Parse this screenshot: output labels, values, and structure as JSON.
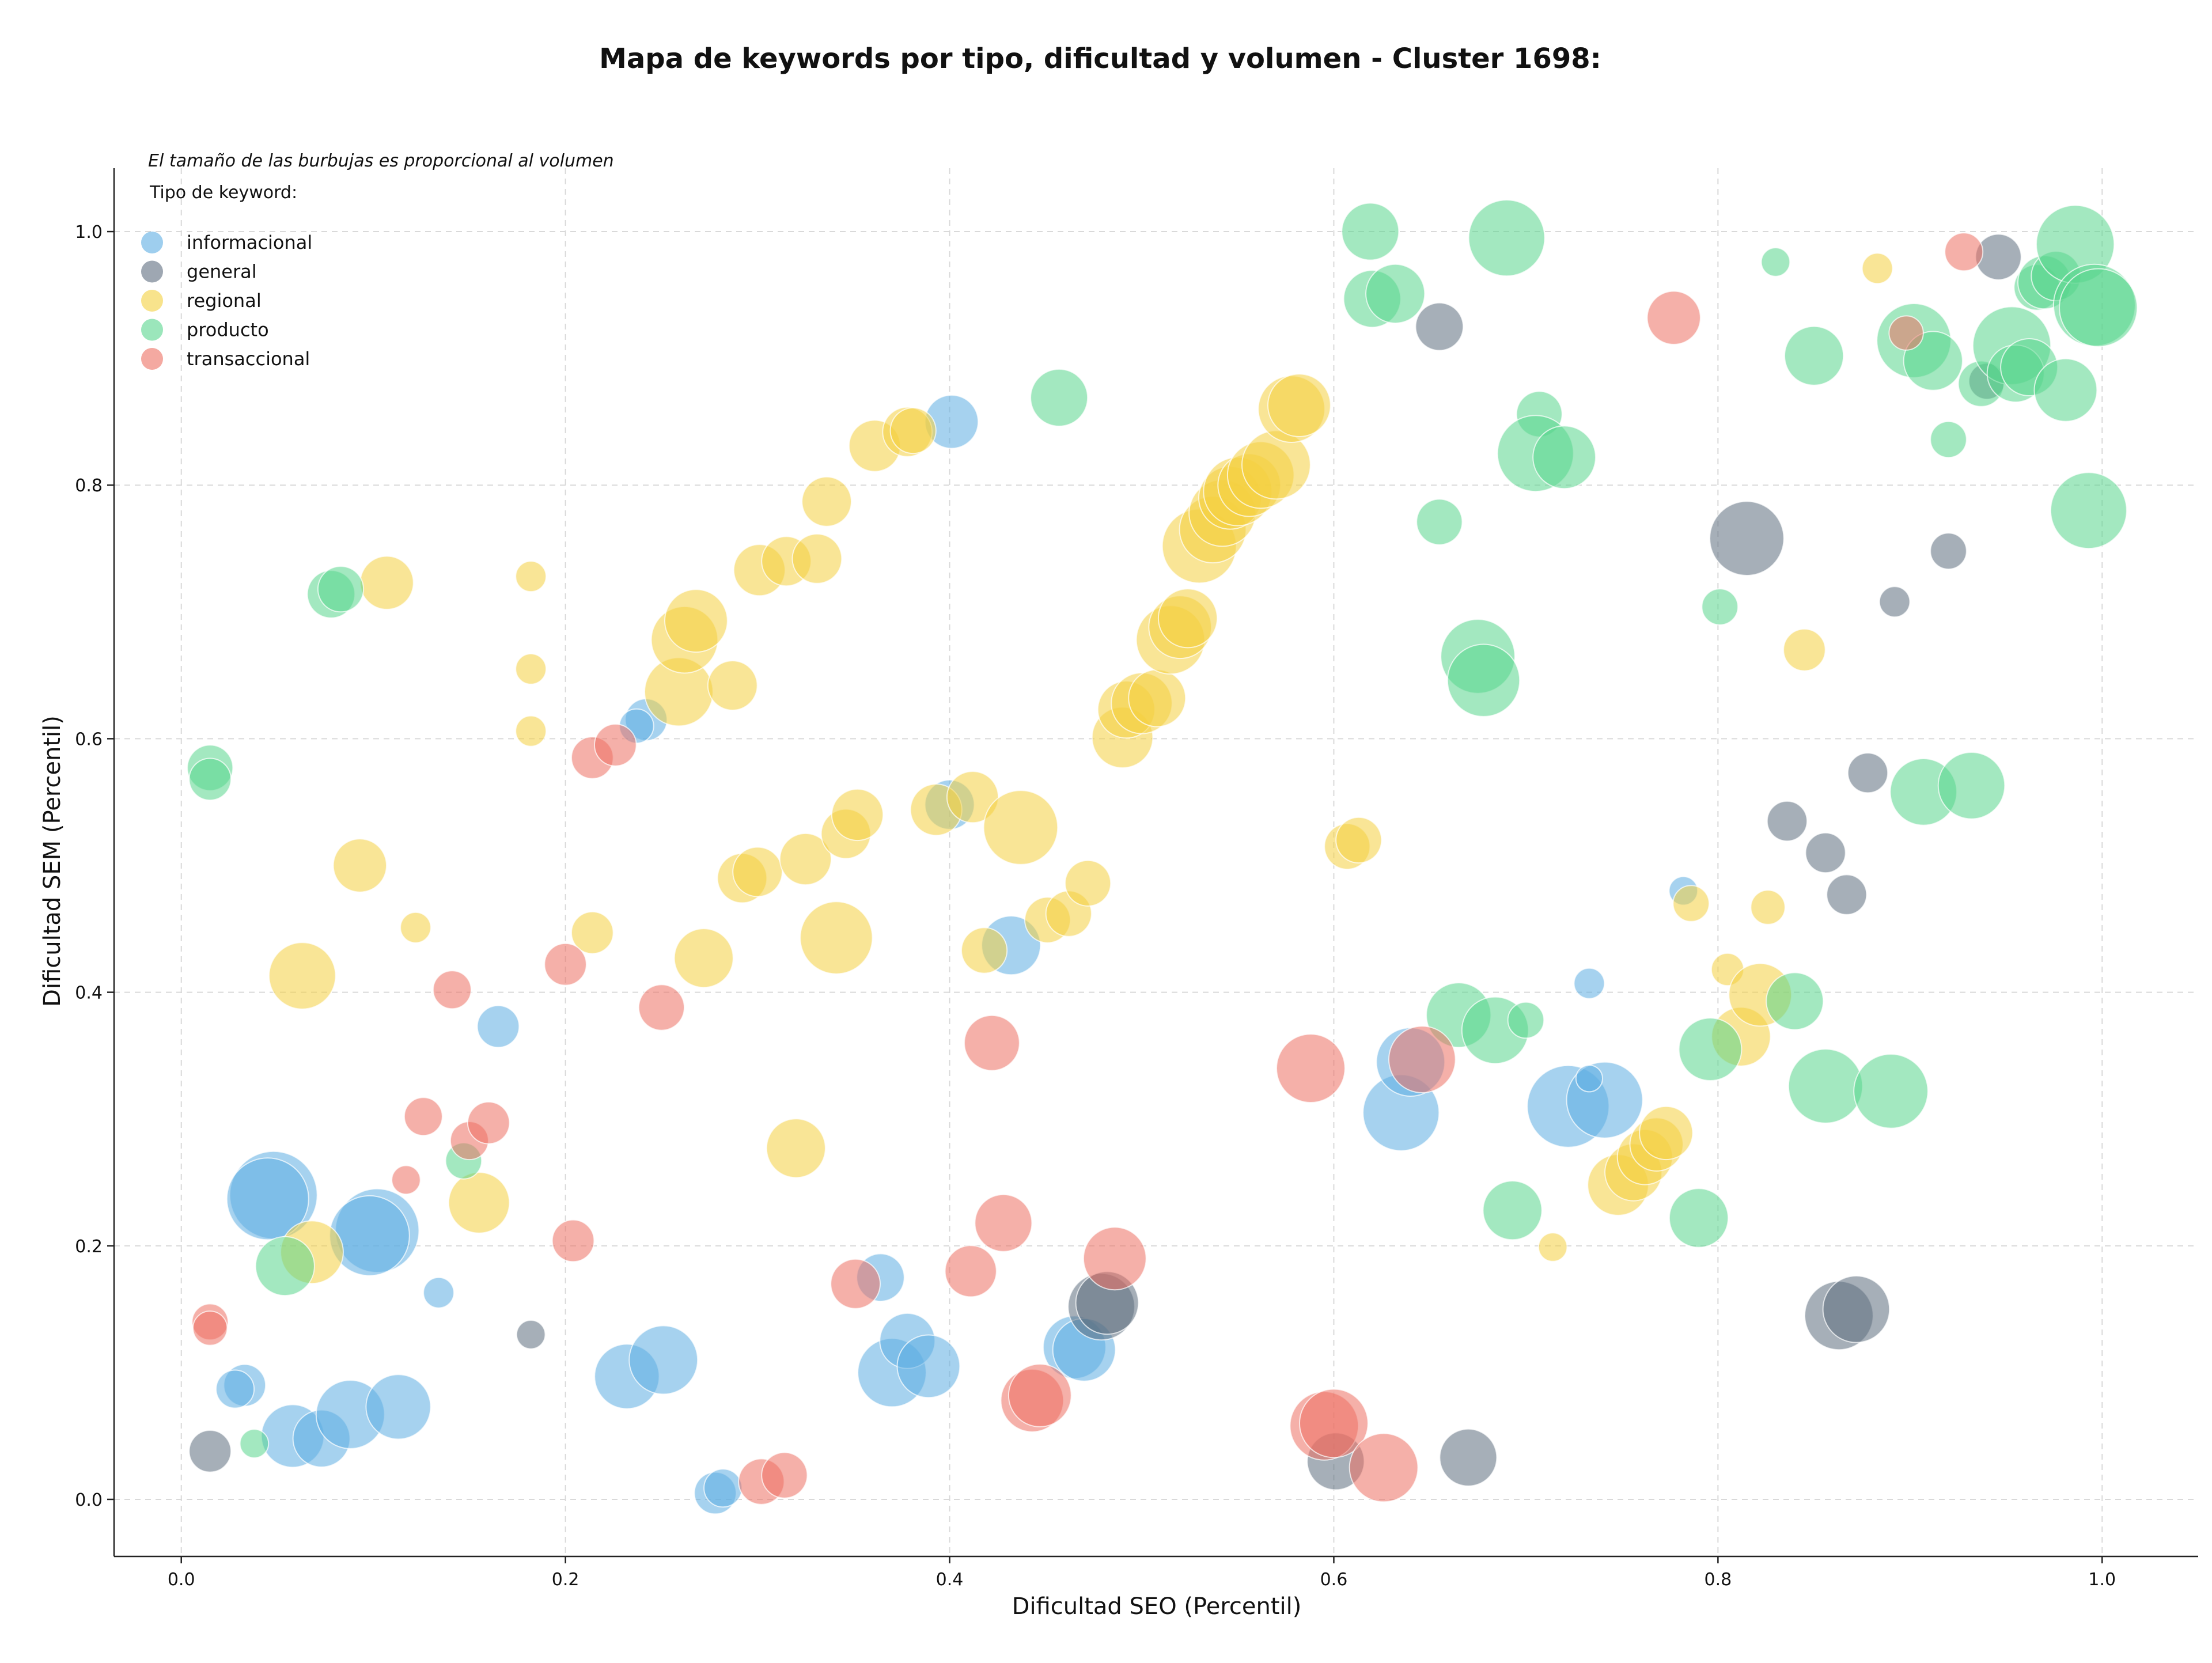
{
  "chart_data": {
    "type": "scatter",
    "title": "Mapa de keywords por tipo, dificultad y volumen - Cluster 1698:",
    "xlabel": "Dificultad SEO (Percentil)",
    "ylabel": "Dificultad SEM (Percentil)",
    "xlim": [
      -0.035,
      1.05
    ],
    "ylim": [
      -0.045,
      1.05
    ],
    "xticks": [
      0.0,
      0.2,
      0.4,
      0.6,
      0.8,
      1.0
    ],
    "yticks": [
      0.0,
      0.2,
      0.4,
      0.6,
      0.8,
      1.0
    ],
    "tick_labels_x": [
      "0.0",
      "0.2",
      "0.4",
      "0.6",
      "0.8",
      "1.0"
    ],
    "tick_labels_y": [
      "0.0",
      "0.2",
      "0.4",
      "0.6",
      "0.8",
      "1.0"
    ],
    "grid": true,
    "legend_position": "top-left",
    "annotation": "El tamaño de las burbujas es proporcional al volumen",
    "legend_title": "Tipo de keyword:",
    "size_encoding": "volume (bubble radius in relative units 1-5)",
    "series": [
      {
        "name": "informacional",
        "color": "#5DADE2",
        "points": [
          [
            0.048,
            0.24,
            4.6
          ],
          [
            0.045,
            0.237,
            4.3
          ],
          [
            0.102,
            0.212,
            4.4
          ],
          [
            0.098,
            0.208,
            4.2
          ],
          [
            0.033,
            0.09,
            2.2
          ],
          [
            0.028,
            0.087,
            2.0
          ],
          [
            0.058,
            0.05,
            3.3
          ],
          [
            0.073,
            0.048,
            3.0
          ],
          [
            0.088,
            0.067,
            3.6
          ],
          [
            0.113,
            0.073,
            3.4
          ],
          [
            0.134,
            0.163,
            1.6
          ],
          [
            0.165,
            0.373,
            2.2
          ],
          [
            0.232,
            0.097,
            3.4
          ],
          [
            0.251,
            0.11,
            3.6
          ],
          [
            0.242,
            0.615,
            2.2
          ],
          [
            0.237,
            0.61,
            1.8
          ],
          [
            0.278,
            0.005,
            2.2
          ],
          [
            0.282,
            0.009,
            2.0
          ],
          [
            0.364,
            0.175,
            2.5
          ],
          [
            0.37,
            0.1,
            3.6
          ],
          [
            0.378,
            0.125,
            2.9
          ],
          [
            0.389,
            0.105,
            3.3
          ],
          [
            0.401,
            0.85,
            2.8
          ],
          [
            0.4,
            0.548,
            2.6
          ],
          [
            0.432,
            0.437,
            3.1
          ],
          [
            0.465,
            0.12,
            3.3
          ],
          [
            0.47,
            0.118,
            3.3
          ],
          [
            0.635,
            0.305,
            4.0
          ],
          [
            0.64,
            0.345,
            3.6
          ],
          [
            0.722,
            0.31,
            4.3
          ],
          [
            0.741,
            0.315,
            4.0
          ],
          [
            0.733,
            0.407,
            1.6
          ],
          [
            0.733,
            0.332,
            1.4
          ],
          [
            0.782,
            0.48,
            1.5
          ]
        ]
      },
      {
        "name": "general",
        "color": "#5D6D7E",
        "points": [
          [
            0.015,
            0.038,
            2.2
          ],
          [
            0.182,
            0.13,
            1.5
          ],
          [
            0.479,
            0.152,
            3.5
          ],
          [
            0.482,
            0.155,
            3.3
          ],
          [
            0.601,
            0.03,
            3.0
          ],
          [
            0.655,
            0.925,
            2.5
          ],
          [
            0.67,
            0.033,
            3.0
          ],
          [
            0.815,
            0.758,
            3.9
          ],
          [
            0.836,
            0.535,
            2.1
          ],
          [
            0.856,
            0.51,
            2.1
          ],
          [
            0.867,
            0.477,
            2.1
          ],
          [
            0.863,
            0.145,
            3.6
          ],
          [
            0.872,
            0.15,
            3.5
          ],
          [
            0.878,
            0.573,
            2.1
          ],
          [
            0.892,
            0.708,
            1.6
          ],
          [
            0.92,
            0.748,
            1.9
          ],
          [
            0.946,
            0.98,
            2.4
          ],
          [
            0.94,
            0.882,
            1.9
          ]
        ]
      },
      {
        "name": "regional",
        "color": "#F4D03F",
        "points": [
          [
            0.063,
            0.413,
            3.5
          ],
          [
            0.068,
            0.195,
            3.3
          ],
          [
            0.093,
            0.5,
            2.8
          ],
          [
            0.107,
            0.723,
            2.8
          ],
          [
            0.122,
            0.451,
            1.6
          ],
          [
            0.155,
            0.234,
            3.2
          ],
          [
            0.182,
            0.728,
            1.6
          ],
          [
            0.182,
            0.655,
            1.6
          ],
          [
            0.182,
            0.606,
            1.6
          ],
          [
            0.214,
            0.447,
            2.2
          ],
          [
            0.259,
            0.637,
            3.6
          ],
          [
            0.262,
            0.678,
            3.5
          ],
          [
            0.268,
            0.693,
            3.3
          ],
          [
            0.272,
            0.427,
            3.1
          ],
          [
            0.287,
            0.642,
            2.6
          ],
          [
            0.292,
            0.49,
            2.6
          ],
          [
            0.3,
            0.495,
            2.6
          ],
          [
            0.301,
            0.733,
            2.7
          ],
          [
            0.315,
            0.74,
            2.6
          ],
          [
            0.32,
            0.277,
            3.1
          ],
          [
            0.325,
            0.505,
            2.7
          ],
          [
            0.331,
            0.742,
            2.6
          ],
          [
            0.336,
            0.787,
            2.6
          ],
          [
            0.341,
            0.443,
            3.8
          ],
          [
            0.346,
            0.525,
            2.6
          ],
          [
            0.352,
            0.54,
            2.7
          ],
          [
            0.361,
            0.831,
            2.7
          ],
          [
            0.378,
            0.842,
            2.6
          ],
          [
            0.381,
            0.843,
            2.4
          ],
          [
            0.393,
            0.544,
            2.7
          ],
          [
            0.412,
            0.554,
            2.7
          ],
          [
            0.418,
            0.433,
            2.4
          ],
          [
            0.437,
            0.53,
            3.9
          ],
          [
            0.451,
            0.457,
            2.4
          ],
          [
            0.462,
            0.462,
            2.4
          ],
          [
            0.472,
            0.486,
            2.4
          ],
          [
            0.49,
            0.601,
            3.2
          ],
          [
            0.492,
            0.623,
            3.0
          ],
          [
            0.5,
            0.628,
            3.2
          ],
          [
            0.508,
            0.632,
            3.0
          ],
          [
            0.515,
            0.678,
            3.6
          ],
          [
            0.52,
            0.688,
            3.3
          ],
          [
            0.524,
            0.695,
            3.1
          ],
          [
            0.53,
            0.752,
            3.9
          ],
          [
            0.537,
            0.765,
            3.5
          ],
          [
            0.542,
            0.778,
            3.5
          ],
          [
            0.546,
            0.79,
            3.3
          ],
          [
            0.55,
            0.795,
            3.6
          ],
          [
            0.556,
            0.8,
            3.3
          ],
          [
            0.562,
            0.808,
            3.5
          ],
          [
            0.57,
            0.816,
            3.6
          ],
          [
            0.578,
            0.86,
            3.5
          ],
          [
            0.582,
            0.863,
            3.3
          ],
          [
            0.607,
            0.515,
            2.4
          ],
          [
            0.613,
            0.52,
            2.4
          ],
          [
            0.714,
            0.199,
            1.5
          ],
          [
            0.748,
            0.248,
            3.2
          ],
          [
            0.756,
            0.258,
            3.0
          ],
          [
            0.762,
            0.27,
            2.9
          ],
          [
            0.768,
            0.28,
            2.8
          ],
          [
            0.773,
            0.289,
            2.8
          ],
          [
            0.786,
            0.47,
            1.9
          ],
          [
            0.805,
            0.418,
            1.7
          ],
          [
            0.812,
            0.365,
            3.1
          ],
          [
            0.822,
            0.398,
            3.3
          ],
          [
            0.826,
            0.467,
            1.8
          ],
          [
            0.845,
            0.67,
            2.2
          ],
          [
            0.883,
            0.971,
            1.6
          ]
        ]
      },
      {
        "name": "producto",
        "color": "#58D68D",
        "points": [
          [
            0.015,
            0.577,
            2.4
          ],
          [
            0.015,
            0.568,
            2.2
          ],
          [
            0.038,
            0.044,
            1.5
          ],
          [
            0.054,
            0.184,
            3.1
          ],
          [
            0.078,
            0.714,
            2.5
          ],
          [
            0.083,
            0.718,
            2.4
          ],
          [
            0.147,
            0.267,
            1.9
          ],
          [
            0.457,
            0.869,
            3.0
          ],
          [
            0.619,
            1.0,
            3.0
          ],
          [
            0.62,
            0.947,
            3.0
          ],
          [
            0.632,
            0.951,
            3.1
          ],
          [
            0.655,
            0.771,
            2.4
          ],
          [
            0.675,
            0.665,
            3.9
          ],
          [
            0.678,
            0.646,
            3.8
          ],
          [
            0.665,
            0.382,
            3.4
          ],
          [
            0.684,
            0.37,
            3.5
          ],
          [
            0.69,
            0.995,
            4.0
          ],
          [
            0.693,
            0.228,
            3.1
          ],
          [
            0.7,
            0.378,
            1.9
          ],
          [
            0.707,
            0.856,
            2.4
          ],
          [
            0.705,
            0.825,
            4.0
          ],
          [
            0.72,
            0.822,
            3.3
          ],
          [
            0.79,
            0.222,
            3.1
          ],
          [
            0.796,
            0.355,
            3.3
          ],
          [
            0.801,
            0.704,
            1.9
          ],
          [
            0.83,
            0.976,
            1.5
          ],
          [
            0.84,
            0.393,
            3.0
          ],
          [
            0.85,
            0.902,
            3.1
          ],
          [
            0.856,
            0.326,
            3.9
          ],
          [
            0.89,
            0.322,
            3.9
          ],
          [
            0.902,
            0.914,
            3.9
          ],
          [
            0.907,
            0.558,
            3.5
          ],
          [
            0.912,
            0.898,
            3.1
          ],
          [
            0.92,
            0.836,
            1.9
          ],
          [
            0.932,
            0.563,
            3.5
          ],
          [
            0.937,
            0.88,
            2.4
          ],
          [
            0.953,
            0.91,
            4.1
          ],
          [
            0.955,
            0.888,
            3.0
          ],
          [
            0.962,
            0.893,
            3.0
          ],
          [
            0.966,
            0.956,
            2.4
          ],
          [
            0.97,
            0.96,
            2.8
          ],
          [
            0.976,
            0.965,
            2.6
          ],
          [
            0.981,
            0.875,
            3.3
          ],
          [
            0.986,
            0.99,
            4.1
          ],
          [
            0.993,
            0.78,
            4.0
          ],
          [
            0.996,
            0.942,
            4.3
          ],
          [
            0.998,
            0.94,
            4.1
          ]
        ]
      },
      {
        "name": "transaccional",
        "color": "#EC7063",
        "points": [
          [
            0.015,
            0.14,
            1.9
          ],
          [
            0.015,
            0.135,
            1.8
          ],
          [
            0.117,
            0.252,
            1.5
          ],
          [
            0.126,
            0.302,
            2.0
          ],
          [
            0.141,
            0.402,
            2.0
          ],
          [
            0.15,
            0.283,
            2.0
          ],
          [
            0.16,
            0.297,
            2.2
          ],
          [
            0.2,
            0.422,
            2.2
          ],
          [
            0.204,
            0.204,
            2.2
          ],
          [
            0.214,
            0.585,
            2.2
          ],
          [
            0.226,
            0.595,
            2.2
          ],
          [
            0.25,
            0.388,
            2.4
          ],
          [
            0.302,
            0.014,
            2.4
          ],
          [
            0.314,
            0.019,
            2.4
          ],
          [
            0.351,
            0.17,
            2.6
          ],
          [
            0.411,
            0.18,
            2.7
          ],
          [
            0.422,
            0.36,
            2.9
          ],
          [
            0.428,
            0.218,
            3.0
          ],
          [
            0.443,
            0.078,
            3.3
          ],
          [
            0.447,
            0.082,
            3.3
          ],
          [
            0.486,
            0.19,
            3.3
          ],
          [
            0.588,
            0.34,
            3.6
          ],
          [
            0.595,
            0.058,
            3.6
          ],
          [
            0.6,
            0.06,
            3.6
          ],
          [
            0.626,
            0.025,
            3.6
          ],
          [
            0.646,
            0.347,
            3.5
          ],
          [
            0.777,
            0.932,
            2.8
          ],
          [
            0.898,
            0.92,
            1.8
          ],
          [
            0.928,
            0.984,
            2.0
          ]
        ]
      }
    ]
  }
}
